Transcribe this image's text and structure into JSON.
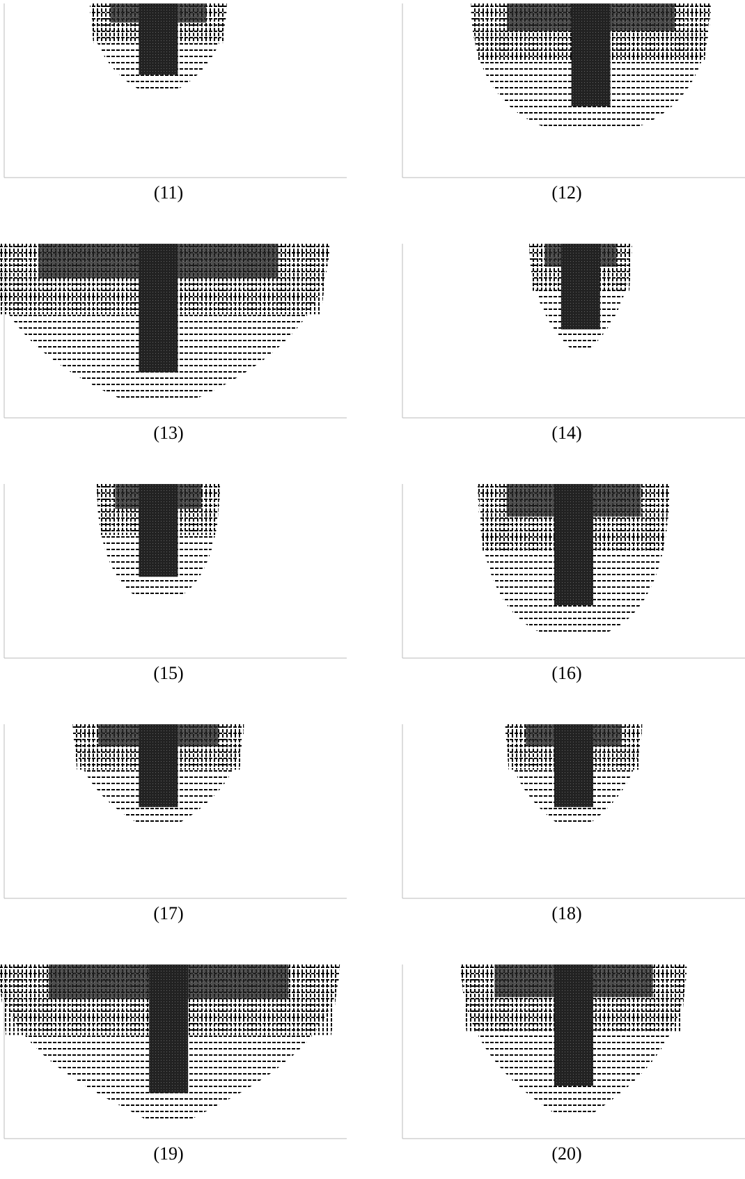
{
  "panels": [
    {
      "label": "(11)"
    },
    {
      "label": "(12)"
    },
    {
      "label": "(13)"
    },
    {
      "label": "(14)"
    },
    {
      "label": "(15)"
    },
    {
      "label": "(16)"
    },
    {
      "label": "(17)"
    },
    {
      "label": "(18)"
    },
    {
      "label": "(19)"
    },
    {
      "label": "(20)"
    }
  ]
}
